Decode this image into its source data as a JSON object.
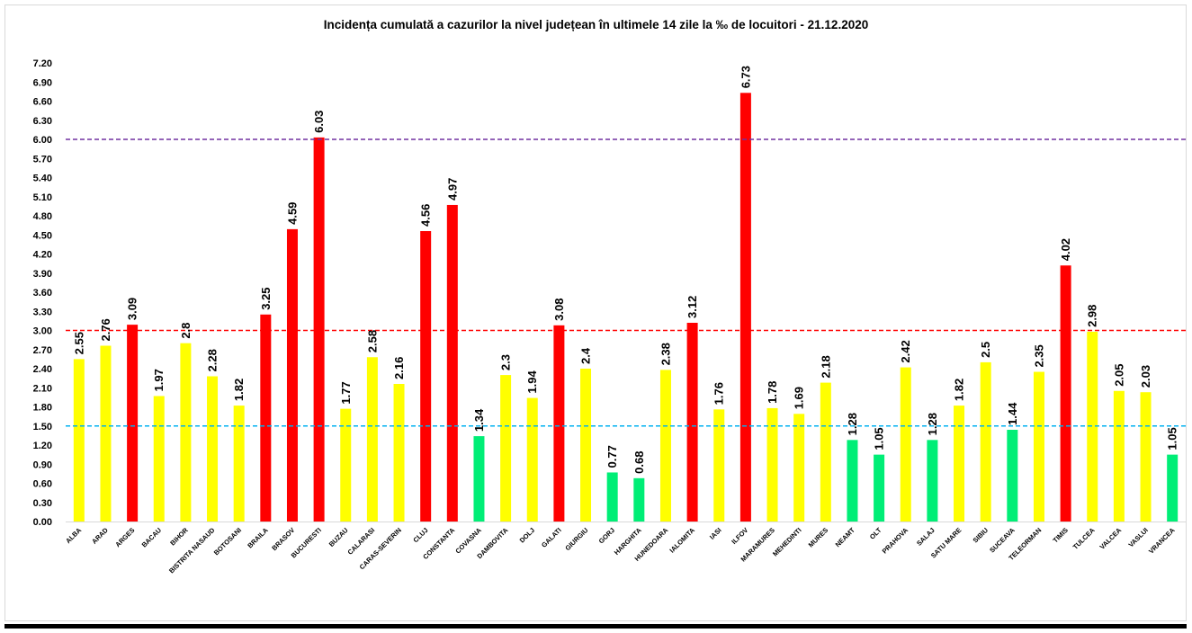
{
  "chart_data": {
    "type": "bar",
    "title": "Incidența cumulată a cazurilor la nivel județean în ultimele 14 zile la ‰ de locuitori - 21.12.2020",
    "xlabel": "",
    "ylabel": "",
    "ylim": [
      0,
      7.2
    ],
    "yticks": [
      "0.00",
      "0.30",
      "0.60",
      "0.90",
      "1.20",
      "1.50",
      "1.80",
      "2.10",
      "2.40",
      "2.70",
      "3.00",
      "3.30",
      "3.60",
      "3.90",
      "4.20",
      "4.50",
      "4.80",
      "5.10",
      "5.40",
      "5.70",
      "6.00",
      "6.30",
      "6.60",
      "6.90",
      "7.20"
    ],
    "categories": [
      "ALBA",
      "ARAD",
      "ARGES",
      "BACAU",
      "BIHOR",
      "BISTRITA NASAUD",
      "BOTOSANI",
      "BRAILA",
      "BRASOV",
      "BUCURESTI",
      "BUZAU",
      "CALARASI",
      "CARAS-SEVERIN",
      "CLUJ",
      "CONSTANTA",
      "COVASNA",
      "DAMBOVITA",
      "DOLJ",
      "GALATI",
      "GIURGIU",
      "GORJ",
      "HARGHITA",
      "HUNEDOARA",
      "IALOMITA",
      "IASI",
      "ILFOV",
      "MARAMURES",
      "MEHEDINTI",
      "MURES",
      "NEAMT",
      "OLT",
      "PRAHOVA",
      "SALAJ",
      "SATU MARE",
      "SIBIU",
      "SUCEAVA",
      "TELEORMAN",
      "TIMIS",
      "TULCEA",
      "VALCEA",
      "VASLUI",
      "VRANCEA"
    ],
    "values": [
      2.55,
      2.76,
      3.09,
      1.97,
      2.8,
      2.28,
      1.82,
      3.25,
      4.59,
      6.03,
      1.77,
      2.58,
      2.16,
      4.56,
      4.97,
      1.34,
      2.3,
      1.94,
      3.08,
      2.4,
      0.77,
      0.68,
      2.38,
      3.12,
      1.76,
      6.73,
      1.78,
      1.69,
      2.18,
      1.28,
      1.05,
      2.42,
      1.28,
      1.82,
      2.5,
      1.44,
      2.35,
      4.02,
      2.98,
      2.05,
      2.03,
      1.05
    ],
    "value_labels": [
      "2.55",
      "2.76",
      "3.09",
      "1.97",
      "2.8",
      "2.28",
      "1.82",
      "3.25",
      "4.59",
      "6.03",
      "1.77",
      "2.58",
      "2.16",
      "4.56",
      "4.97",
      "1.34",
      "2.3",
      "1.94",
      "3.08",
      "2.4",
      "0.77",
      "0.68",
      "2.38",
      "3.12",
      "1.76",
      "6.73",
      "1.78",
      "1.69",
      "2.18",
      "1.28",
      "1.05",
      "2.42",
      "1.28",
      "1.82",
      "2.5",
      "1.44",
      "2.35",
      "4.02",
      "2.98",
      "2.05",
      "2.03",
      "1.05"
    ],
    "thresholds": [
      {
        "value": 6.0,
        "color": "#7030A0",
        "style": "dashed"
      },
      {
        "value": 3.0,
        "color": "#FF0000",
        "style": "dashed"
      },
      {
        "value": 1.5,
        "color": "#00B0F0",
        "style": "dashed"
      }
    ],
    "colors": {
      "low": "#00EE76",
      "mid": "#FFFF00",
      "high": "#FF0000"
    },
    "color_rule": "low if value <= 1.5, mid if value <= 3.0, high if value > 3.0",
    "grid": false,
    "legend": "none"
  }
}
